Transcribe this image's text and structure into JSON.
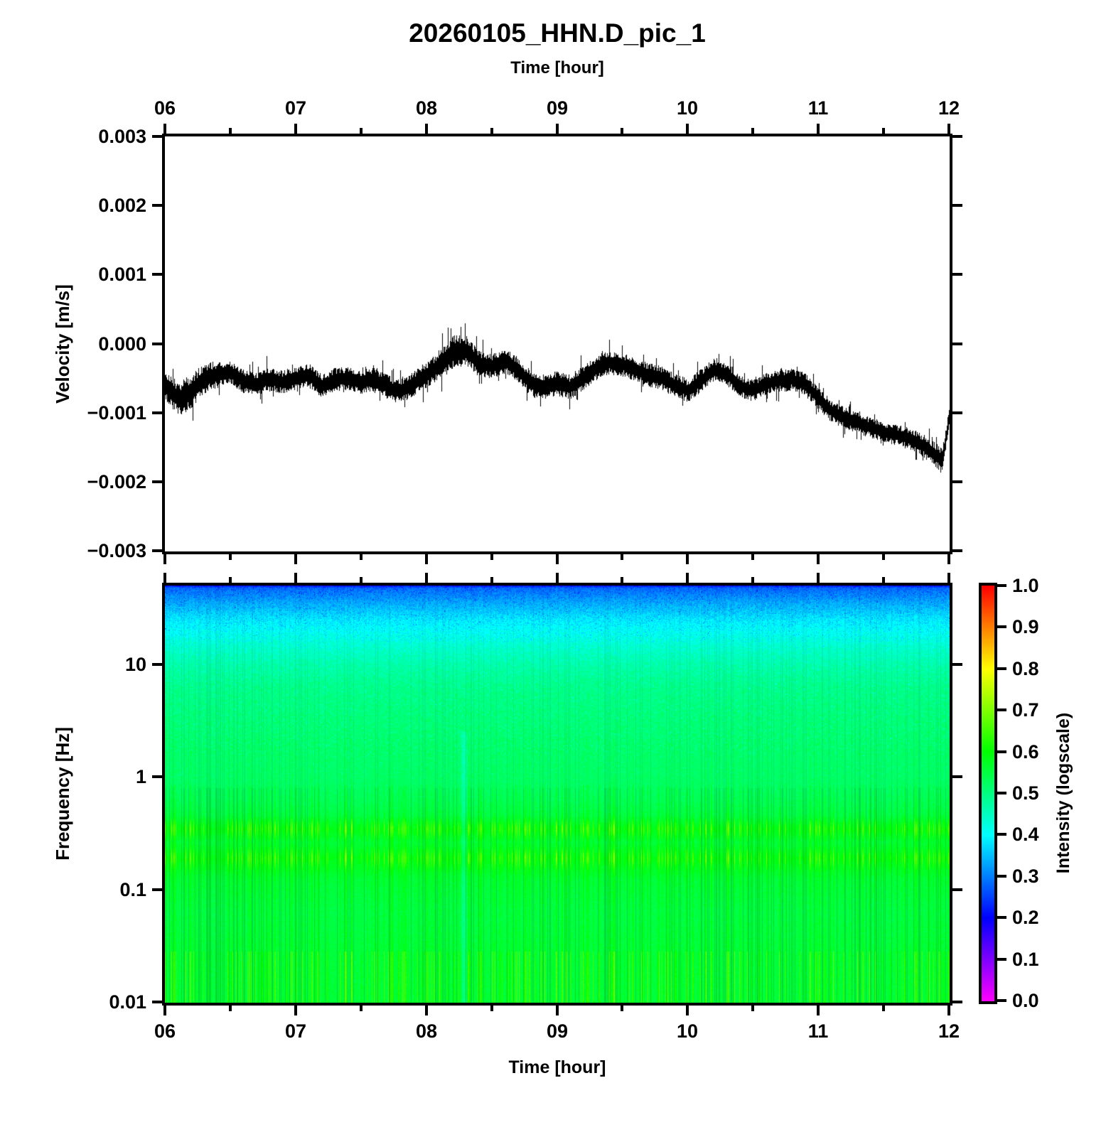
{
  "title": "20260105_HHN.D_pic_1",
  "axes": {
    "top_time_label": "Time [hour]",
    "bottom_time_label": "Time [hour]",
    "velocity_label": "Velocity [m/s]",
    "frequency_label": "Frequency [Hz]",
    "colorbar_label": "Intensity (logscale)",
    "time_tick_labels": [
      "06",
      "07",
      "08",
      "09",
      "10",
      "11",
      "12"
    ],
    "velocity_tick_labels": [
      "0.003",
      "0.002",
      "0.001",
      "0.000",
      "−0.001",
      "−0.002",
      "−0.003"
    ],
    "frequency_tick_labels": [
      "10",
      "1",
      "0.1",
      "0.01"
    ],
    "colorbar_tick_labels": [
      "1.0",
      "0.9",
      "0.8",
      "0.7",
      "0.6",
      "0.5",
      "0.4",
      "0.3",
      "0.2",
      "0.1",
      "0.0"
    ]
  },
  "chart_data": [
    {
      "type": "line",
      "title": "20260105_HHN.D_pic_1",
      "xlabel": "Time [hour]",
      "ylabel": "Velocity [m/s]",
      "x_range": [
        6,
        12
      ],
      "ylim": [
        -0.003,
        0.003
      ],
      "x_major_ticks": [
        6,
        7,
        8,
        9,
        10,
        11,
        12
      ],
      "x_minor_step": 0.5,
      "y_ticks": [
        0.003,
        0.002,
        0.001,
        0.0,
        -0.001,
        -0.002,
        -0.003
      ],
      "line_color": "#000000",
      "description": "Noisy seismic velocity trace; center_v is the wandering mean of the trace (in 1e-3 m/s), half_amp is the noise envelope half-width (in 1e-3 m/s).",
      "series": [
        {
          "name": "velocity",
          "t": [
            6.0,
            6.1,
            6.2,
            6.3,
            6.4,
            6.5,
            6.6,
            6.7,
            6.8,
            6.9,
            7.0,
            7.1,
            7.2,
            7.3,
            7.4,
            7.5,
            7.6,
            7.7,
            7.8,
            7.9,
            8.0,
            8.1,
            8.2,
            8.3,
            8.4,
            8.5,
            8.6,
            8.7,
            8.8,
            8.9,
            9.0,
            9.1,
            9.2,
            9.3,
            9.4,
            9.5,
            9.6,
            9.7,
            9.8,
            9.9,
            10.0,
            10.1,
            10.2,
            10.3,
            10.4,
            10.5,
            10.6,
            10.7,
            10.8,
            10.9,
            11.0,
            11.1,
            11.2,
            11.3,
            11.4,
            11.5,
            11.6,
            11.7,
            11.8,
            11.9,
            11.95,
            12.0
          ],
          "center_v": [
            -0.62,
            -0.8,
            -0.7,
            -0.5,
            -0.45,
            -0.42,
            -0.55,
            -0.58,
            -0.52,
            -0.56,
            -0.5,
            -0.46,
            -0.62,
            -0.52,
            -0.5,
            -0.56,
            -0.52,
            -0.63,
            -0.7,
            -0.58,
            -0.46,
            -0.3,
            -0.12,
            -0.1,
            -0.28,
            -0.33,
            -0.25,
            -0.38,
            -0.58,
            -0.62,
            -0.58,
            -0.63,
            -0.5,
            -0.36,
            -0.28,
            -0.3,
            -0.38,
            -0.45,
            -0.5,
            -0.6,
            -0.68,
            -0.54,
            -0.38,
            -0.44,
            -0.62,
            -0.68,
            -0.58,
            -0.54,
            -0.52,
            -0.58,
            -0.8,
            -0.98,
            -1.08,
            -1.15,
            -1.22,
            -1.28,
            -1.32,
            -1.38,
            -1.48,
            -1.62,
            -1.7,
            -1.05
          ]
        }
      ],
      "envelope": {
        "t": [
          6.0,
          6.2,
          6.5,
          7.0,
          7.5,
          8.0,
          8.2,
          8.4,
          9.0,
          9.5,
          10.0,
          10.5,
          11.0,
          11.5,
          11.85,
          11.95,
          12.0
        ],
        "half_amp": [
          0.2,
          0.22,
          0.15,
          0.15,
          0.15,
          0.16,
          0.22,
          0.16,
          0.16,
          0.15,
          0.15,
          0.14,
          0.14,
          0.13,
          0.15,
          0.17,
          0.11
        ]
      }
    },
    {
      "type": "heatmap",
      "subtype": "spectrogram",
      "xlabel": "Time [hour]",
      "ylabel": "Frequency [Hz]",
      "x_range": [
        6,
        12
      ],
      "freq_range_hz": [
        0.01,
        50
      ],
      "freq_scale": "log",
      "freq_ticks_hz": [
        10,
        1,
        0.1,
        0.01
      ],
      "x_major_ticks": [
        6,
        7,
        8,
        9,
        10,
        11,
        12
      ],
      "x_minor_step": 0.5,
      "colorbar": {
        "label": "Intensity (logscale)",
        "range": [
          0.0,
          1.0
        ],
        "tick_step": 0.1,
        "colormap": "rainbow: 0.0 magenta -> 0.2 blue -> 0.4 cyan -> 0.6 green -> 0.8 yellow -> 1.0 red",
        "hue_deg_at_0": 300,
        "hue_deg_at_1": 0
      },
      "intensity_profile": {
        "log10_freq": [
          -2.0,
          -1.6,
          -1.2,
          -0.9,
          -0.72,
          -0.58,
          -0.46,
          -0.34,
          -0.2,
          -0.05,
          0.2,
          0.5,
          0.8,
          1.0,
          1.2,
          1.4,
          1.55,
          1.7
        ],
        "intensity": [
          0.555,
          0.555,
          0.545,
          0.555,
          0.585,
          0.555,
          0.585,
          0.545,
          0.53,
          0.52,
          0.515,
          0.505,
          0.49,
          0.465,
          0.43,
          0.385,
          0.335,
          0.275
        ]
      },
      "microseism_bands_hz": [
        0.19,
        0.35
      ],
      "texture": {
        "vertical_stripes": true,
        "stripe_hot_boost": 0.13,
        "anomaly_column_hour": 8.28
      }
    }
  ]
}
